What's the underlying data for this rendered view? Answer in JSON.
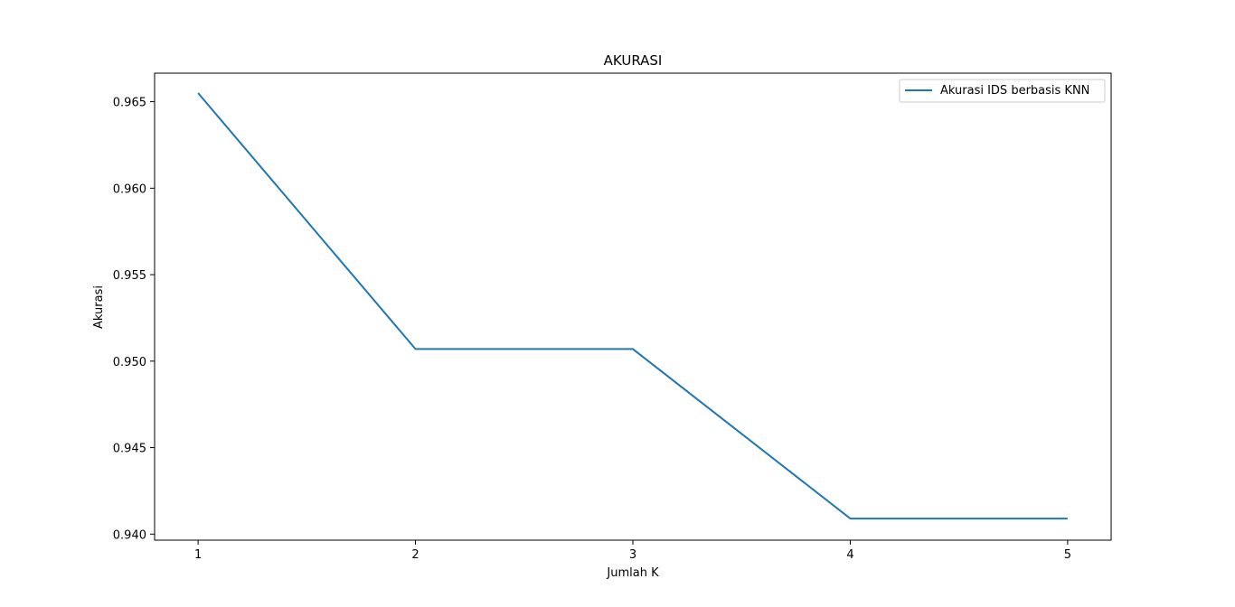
{
  "chart_data": {
    "type": "line",
    "title": "AKURASI",
    "xlabel": "Jumlah K",
    "ylabel": "Akurasi",
    "x": [
      1,
      2,
      3,
      4,
      5
    ],
    "x_tick_labels": [
      "1",
      "2",
      "3",
      "4",
      "5"
    ],
    "y_tick_values": [
      0.94,
      0.945,
      0.95,
      0.955,
      0.96,
      0.965
    ],
    "y_tick_labels": [
      "0.940",
      "0.945",
      "0.950",
      "0.955",
      "0.960",
      "0.965"
    ],
    "xlim": [
      0.8,
      5.2
    ],
    "ylim": [
      0.93965,
      0.96665
    ],
    "series": [
      {
        "name": "Akurasi IDS berbasis KNN",
        "values": [
          0.9655,
          0.9507,
          0.9507,
          0.9409,
          0.9409
        ],
        "color": "#1f77b4"
      }
    ],
    "legend": "top-right",
    "grid": false
  }
}
